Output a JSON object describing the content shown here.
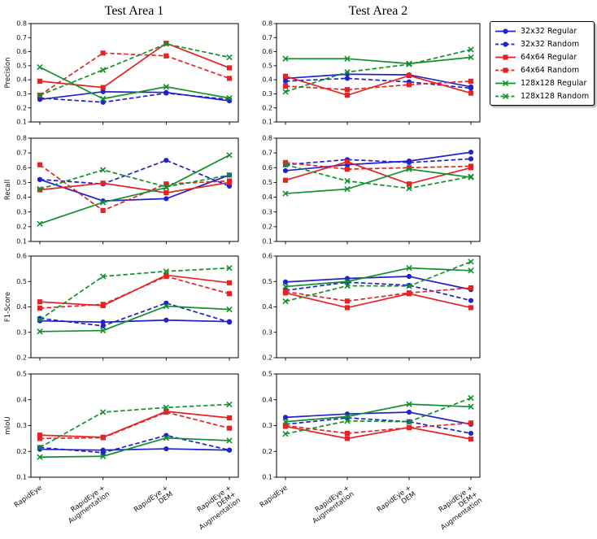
{
  "figure": {
    "titles": [
      "Test Area 1",
      "Test Area 2"
    ]
  },
  "legend": {
    "items": [
      {
        "label": "32x32 Regular",
        "color": "#2222cc",
        "dash": false,
        "marker": "circle"
      },
      {
        "label": "32x32 Random",
        "color": "#2222cc",
        "dash": true,
        "marker": "circle"
      },
      {
        "label": "64x64 Regular",
        "color": "#e62222",
        "dash": false,
        "marker": "square"
      },
      {
        "label": "64x64 Random",
        "color": "#e62222",
        "dash": true,
        "marker": "square"
      },
      {
        "label": "128x128 Regular",
        "color": "#11912b",
        "dash": false,
        "marker": "x"
      },
      {
        "label": "128x128 Random",
        "color": "#11912b",
        "dash": true,
        "marker": "x"
      }
    ]
  },
  "chart_data": {
    "type": "line",
    "grid": false,
    "legend_position": "top-right-outside",
    "categories": [
      "RapidEye",
      "RapidEye +\nAugmentation",
      "RapidEye +\nDEM",
      "RapidEye +\nDEM+\nAugmentation"
    ],
    "series_names": [
      "32x32 Regular",
      "32x32 Random",
      "64x64 Regular",
      "64x64 Random",
      "128x128 Regular",
      "128x128 Random"
    ],
    "ytick_step": 0.1,
    "charts": [
      {
        "id": "ta1-precision",
        "area": "Test Area 1",
        "metric": "Precision",
        "ylabel": "Precision",
        "ylim": [
          0.1,
          0.8
        ],
        "series": [
          [
            0.26,
            0.315,
            0.31,
            0.25
          ],
          [
            0.27,
            0.24,
            0.305,
            0.26
          ],
          [
            0.39,
            0.345,
            0.66,
            0.485
          ],
          [
            0.29,
            0.59,
            0.57,
            0.41
          ],
          [
            0.49,
            0.265,
            0.35,
            0.27
          ],
          [
            0.29,
            0.47,
            0.655,
            0.56
          ]
        ]
      },
      {
        "id": "ta2-precision",
        "area": "Test Area 2",
        "metric": "Precision",
        "ylabel": "",
        "ylim": [
          0.1,
          0.8
        ],
        "series": [
          [
            0.41,
            0.44,
            0.435,
            0.35
          ],
          [
            0.39,
            0.41,
            0.385,
            0.34
          ],
          [
            0.425,
            0.29,
            0.43,
            0.305
          ],
          [
            0.355,
            0.33,
            0.365,
            0.39
          ],
          [
            0.55,
            0.55,
            0.515,
            0.56
          ],
          [
            0.315,
            0.455,
            0.51,
            0.615
          ]
        ]
      },
      {
        "id": "ta1-recall",
        "area": "Test Area 1",
        "metric": "Recall",
        "ylabel": "Recall",
        "ylim": [
          0.1,
          0.8
        ],
        "series": [
          [
            0.52,
            0.375,
            0.39,
            0.55
          ],
          [
            0.52,
            0.49,
            0.65,
            0.475
          ],
          [
            0.45,
            0.495,
            0.43,
            0.5
          ],
          [
            0.62,
            0.31,
            0.49,
            0.51
          ],
          [
            0.22,
            0.365,
            0.465,
            0.685
          ],
          [
            0.455,
            0.585,
            0.47,
            0.55
          ]
        ]
      },
      {
        "id": "ta2-recall",
        "area": "Test Area 2",
        "metric": "Recall",
        "ylabel": "",
        "ylim": [
          0.1,
          0.8
        ],
        "series": [
          [
            0.58,
            0.62,
            0.645,
            0.705
          ],
          [
            0.62,
            0.655,
            0.635,
            0.66
          ],
          [
            0.515,
            0.64,
            0.49,
            0.6
          ],
          [
            0.635,
            0.59,
            0.6,
            0.61
          ],
          [
            0.425,
            0.455,
            0.59,
            0.535
          ],
          [
            0.62,
            0.51,
            0.46,
            0.54
          ]
        ]
      },
      {
        "id": "ta1-f1-score",
        "area": "Test Area 1",
        "metric": "F1-Score",
        "ylabel": "F1-Score",
        "ylim": [
          0.2,
          0.6
        ],
        "series": [
          [
            0.345,
            0.34,
            0.348,
            0.342
          ],
          [
            0.355,
            0.325,
            0.415,
            0.34
          ],
          [
            0.42,
            0.405,
            0.525,
            0.495
          ],
          [
            0.395,
            0.41,
            0.52,
            0.452
          ],
          [
            0.303,
            0.307,
            0.403,
            0.39
          ],
          [
            0.35,
            0.52,
            0.54,
            0.553
          ]
        ]
      },
      {
        "id": "ta2-f1-score",
        "area": "Test Area 2",
        "metric": "F1-Score",
        "ylabel": "",
        "ylim": [
          0.2,
          0.6
        ],
        "series": [
          [
            0.498,
            0.512,
            0.52,
            0.468
          ],
          [
            0.465,
            0.497,
            0.485,
            0.425
          ],
          [
            0.455,
            0.397,
            0.452,
            0.397
          ],
          [
            0.46,
            0.423,
            0.455,
            0.475
          ],
          [
            0.48,
            0.5,
            0.553,
            0.543
          ],
          [
            0.422,
            0.483,
            0.482,
            0.578
          ]
        ]
      },
      {
        "id": "ta1-miou",
        "area": "Test Area 1",
        "metric": "mIoU",
        "ylabel": "mIoU",
        "ylim": [
          0.1,
          0.5
        ],
        "series": [
          [
            0.208,
            0.205,
            0.21,
            0.205
          ],
          [
            0.215,
            0.195,
            0.262,
            0.205
          ],
          [
            0.263,
            0.255,
            0.355,
            0.33
          ],
          [
            0.25,
            0.253,
            0.352,
            0.29
          ],
          [
            0.178,
            0.181,
            0.252,
            0.242
          ],
          [
            0.215,
            0.352,
            0.37,
            0.382
          ]
        ]
      },
      {
        "id": "ta2-miou",
        "area": "Test Area 2",
        "metric": "mIoU",
        "ylabel": "",
        "ylim": [
          0.1,
          0.5
        ],
        "series": [
          [
            0.332,
            0.345,
            0.352,
            0.305
          ],
          [
            0.305,
            0.33,
            0.315,
            0.27
          ],
          [
            0.297,
            0.25,
            0.293,
            0.248
          ],
          [
            0.3,
            0.27,
            0.292,
            0.31
          ],
          [
            0.315,
            0.335,
            0.383,
            0.373
          ],
          [
            0.268,
            0.318,
            0.315,
            0.407
          ]
        ]
      }
    ]
  }
}
